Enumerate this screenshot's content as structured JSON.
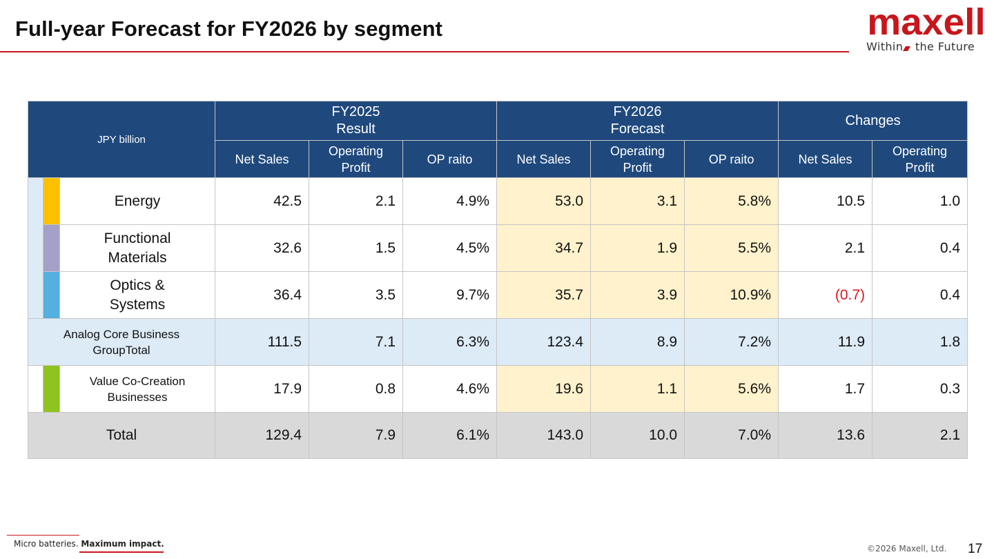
{
  "slide": {
    "title": "Full-year Forecast for FY2026 by segment",
    "page_number": "17",
    "copyright": "©2026 Maxell, Ltd.",
    "footer_tagline_a": "Micro batteries.",
    "footer_tagline_b": "Maximum impact."
  },
  "logo": {
    "word": "maxell",
    "tagline_a": "Within",
    "tagline_b": "the Future",
    "color": "#c8161d"
  },
  "table": {
    "unit": "JPY billion",
    "groups": {
      "fy2025_line1": "FY2025",
      "fy2025_line2": "Result",
      "fy2026_line1": "FY2026",
      "fy2026_line2": "Forecast",
      "changes": "Changes"
    },
    "columns": {
      "net_sales": "Net Sales",
      "op_profit_line1": "Operating",
      "op_profit_line2": "Profit",
      "op_ratio": "OP raito"
    },
    "rows": [
      {
        "l1": "Energy",
        "l2": "",
        "v": [
          "42.5",
          "2.1",
          "4.9%",
          "53.0",
          "3.1",
          "5.8%",
          "10.5",
          "1.0"
        ]
      },
      {
        "l1": "Functional",
        "l2": "Materials",
        "v": [
          "32.6",
          "1.5",
          "4.5%",
          "34.7",
          "1.9",
          "5.5%",
          "2.1",
          "0.4"
        ]
      },
      {
        "l1": "Optics &",
        "l2": "Systems",
        "v": [
          "36.4",
          "3.5",
          "9.7%",
          "35.7",
          "3.9",
          "10.9%",
          "(0.7)",
          "0.4"
        ]
      },
      {
        "l1": "Analog Core Business",
        "l2": "GroupTotal",
        "v": [
          "111.5",
          "7.1",
          "6.3%",
          "123.4",
          "8.9",
          "7.2%",
          "11.9",
          "1.8"
        ]
      },
      {
        "l1": "Value Co-Creation",
        "l2": "Businesses",
        "v": [
          "17.9",
          "0.8",
          "4.6%",
          "19.6",
          "1.1",
          "5.6%",
          "1.7",
          "0.3"
        ]
      },
      {
        "l1": "Total",
        "l2": "",
        "v": [
          "129.4",
          "7.9",
          "6.1%",
          "143.0",
          "10.0",
          "7.0%",
          "13.6",
          "2.1"
        ]
      }
    ],
    "colors": {
      "header": "#1f497d",
      "forecast_fill": "#fff2cc",
      "subtotal_fill": "#ddebf7",
      "total_fill": "#d9d9d9",
      "negative": "#e0141e",
      "energy": "#ffc000",
      "functional_materials": "#a5a0c8",
      "optics_systems": "#53b0df",
      "value_cocreation": "#8fc31f"
    }
  }
}
